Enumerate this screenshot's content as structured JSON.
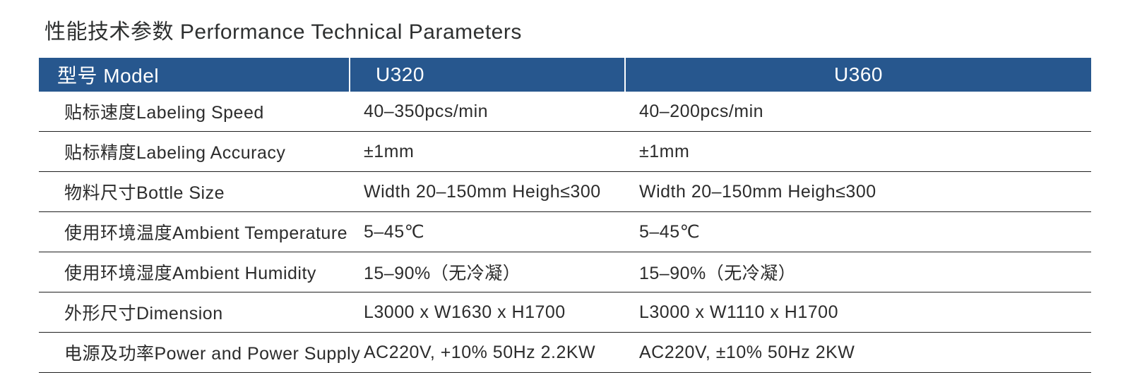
{
  "title": "性能技术参数 Performance Technical Parameters",
  "table": {
    "header_bg": "#27578e",
    "header_fg": "#ffffff",
    "border_color": "#1f1f1f",
    "columns": [
      "型号 Model",
      "U320",
      "U360"
    ],
    "rows": [
      {
        "label": "贴标速度Labeling Speed",
        "u320": "40–350pcs/min",
        "u360": "40–200pcs/min"
      },
      {
        "label": "贴标精度Labeling Accuracy",
        "u320": "±1mm",
        "u360": "±1mm"
      },
      {
        "label": "物料尺寸Bottle Size",
        "u320": "Width 20–150mm Heigh≤300",
        "u360": "Width 20–150mm Heigh≤300"
      },
      {
        "label": "使用环境温度Ambient Temperature",
        "u320": "5–45℃",
        "u360": "5–45℃"
      },
      {
        "label": "使用环境湿度Ambient Humidity",
        "u320": "15–90%（无冷凝）",
        "u360": "15–90%（无冷凝）"
      },
      {
        "label": "外形尺寸Dimension",
        "u320": "L3000 x W1630 x H1700",
        "u360": "L3000 x W1110 x H1700"
      },
      {
        "label": "电源及功率Power and Power Supply",
        "u320": "AC220V, +10% 50Hz 2.2KW",
        "u360": "AC220V, ±10% 50Hz 2KW"
      }
    ]
  }
}
